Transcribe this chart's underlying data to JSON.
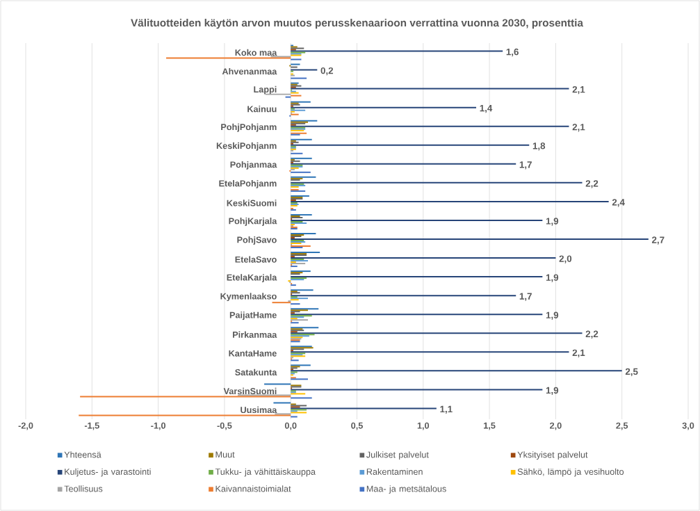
{
  "chart_data": {
    "type": "bar",
    "orientation": "horizontal",
    "title": "Välituotteiden käytön arvon muutos perusskenaarioon verrattina vuonna 2030, prosenttia",
    "categories": [
      "Koko maa",
      "Ahvenanmaa",
      "Lappi",
      "Kainuu",
      "PohjPohjanm",
      "KeskiPohjanm",
      "Pohjanmaa",
      "EtelaPohjanm",
      "KeskiSuomi",
      "PohjKarjala",
      "PohjSavo",
      "EtelaSavo",
      "EtelaKarjala",
      "Kymenlaakso",
      "PaijatHame",
      "Pirkanmaa",
      "KantaHame",
      "Satakunta",
      "VarsinSuomi",
      "Uusimaa"
    ],
    "series": [
      {
        "name": "Yhteensä",
        "color": "#2e75b6",
        "values": [
          0.02,
          0.07,
          0.06,
          0.15,
          0.2,
          0.16,
          0.16,
          0.19,
          0.14,
          0.16,
          0.19,
          0.22,
          0.15,
          0.17,
          0.21,
          0.21,
          0.16,
          0.15,
          -0.2,
          -0.13
        ]
      },
      {
        "name": "Muut",
        "color": "#9e7a00",
        "values": [
          0.05,
          -0.01,
          0.05,
          0.06,
          0.13,
          0.04,
          0.03,
          0.09,
          0.09,
          0.07,
          0.1,
          0.12,
          0.09,
          0.05,
          0.13,
          0.09,
          0.17,
          0.07,
          0.08,
          0.04
        ]
      },
      {
        "name": "Julkiset palvelut",
        "color": "#636363",
        "values": [
          0.1,
          0.05,
          0.08,
          0.07,
          0.11,
          0.06,
          0.07,
          0.07,
          0.09,
          0.09,
          0.08,
          0.12,
          0.07,
          0.07,
          0.07,
          0.1,
          0.1,
          0.05,
          0.08,
          0.12
        ]
      },
      {
        "name": "Yksityiset palvelut",
        "color": "#9e480e",
        "values": [
          0.04,
          0.0,
          0.04,
          0.02,
          0.04,
          0.02,
          0.02,
          0.0,
          0.04,
          0.01,
          0.03,
          0.03,
          0.0,
          0.01,
          0.03,
          0.05,
          0.02,
          0.02,
          0.01,
          0.07
        ]
      },
      {
        "name": "Kuljetus- ja varastointi",
        "color": "#264478",
        "values": [
          1.6,
          0.2,
          2.1,
          1.4,
          2.1,
          1.8,
          1.7,
          2.2,
          2.4,
          1.9,
          2.7,
          2.0,
          1.9,
          1.7,
          1.9,
          2.2,
          2.1,
          2.5,
          1.9,
          1.1
        ],
        "value_labels": [
          "1,6",
          "0,2",
          "2,1",
          "1,4",
          "2,1",
          "1,8",
          "1,7",
          "2,2",
          "2,4",
          "1,9",
          "2,7",
          "2,0",
          "1,9",
          "1,7",
          "1,9",
          "2,2",
          "2,1",
          "2,5",
          "1,9",
          "1,1"
        ]
      },
      {
        "name": "Tukku- ja vähittäiskauppa",
        "color": "#70ad47",
        "values": [
          0.11,
          0.02,
          0.01,
          0.03,
          0.11,
          0.04,
          0.09,
          0.1,
          0.05,
          0.09,
          0.1,
          0.1,
          0.12,
          0.05,
          0.16,
          0.18,
          0.11,
          0.05,
          0.04,
          0.12
        ]
      },
      {
        "name": "Rakentaminen",
        "color": "#5b9bd5",
        "values": [
          0.08,
          0.0,
          0.04,
          0.11,
          0.11,
          0.04,
          0.09,
          0.11,
          0.06,
          0.12,
          0.11,
          0.13,
          0.1,
          0.13,
          0.1,
          0.14,
          0.09,
          0.03,
          0.04,
          0.05
        ]
      },
      {
        "name": "Sähkö, lämpö ja vesihuolto",
        "color": "#ffc000",
        "values": [
          0.08,
          0.02,
          0.06,
          0.03,
          0.1,
          0.04,
          0.06,
          0.06,
          0.05,
          0.03,
          0.08,
          0.04,
          -0.02,
          0.06,
          0.05,
          0.09,
          0.11,
          0.02,
          0.11,
          0.12
        ]
      },
      {
        "name": "Teollisuus",
        "color": "#a5a5a5",
        "values": [
          -0.15,
          0.03,
          -0.19,
          0.01,
          0.0,
          0.02,
          0.03,
          0.0,
          0.0,
          0.02,
          0.01,
          0.11,
          -0.01,
          -0.02,
          0.13,
          0.08,
          0.02,
          0.0,
          -0.4,
          -0.12
        ]
      },
      {
        "name": "Kaivannaistoimialat",
        "color": "#ed7d31",
        "values": [
          -0.94,
          0.0,
          0.08,
          0.06,
          0.12,
          0.0,
          -0.01,
          0.06,
          0.02,
          0.05,
          0.15,
          0.01,
          0.01,
          -0.14,
          0.01,
          0.07,
          0.01,
          0.04,
          -1.59,
          -1.6
        ]
      },
      {
        "name": "Maa- ja metsätalous",
        "color": "#4472c4",
        "values": [
          0.08,
          0.12,
          -0.04,
          -0.01,
          0.07,
          0.09,
          0.15,
          0.11,
          0.04,
          0.05,
          0.09,
          0.05,
          0.04,
          0.07,
          0.06,
          0.07,
          0.06,
          0.13,
          0.16,
          0.05
        ]
      }
    ],
    "xlim": [
      -2,
      3
    ],
    "xticks": [
      {
        "value": -2,
        "label": "-2,0"
      },
      {
        "value": -1.5,
        "label": "-1,5"
      },
      {
        "value": -1,
        "label": "-1,0"
      },
      {
        "value": -0.5,
        "label": "-0,5"
      },
      {
        "value": 0,
        "label": "0,0"
      },
      {
        "value": 0.5,
        "label": "0,5"
      },
      {
        "value": 1,
        "label": "1,0"
      },
      {
        "value": 1.5,
        "label": "1,5"
      },
      {
        "value": 2,
        "label": "2,0"
      },
      {
        "value": 2.5,
        "label": "2,5"
      },
      {
        "value": 3,
        "label": "3,0"
      }
    ],
    "grid": "x",
    "legend": "bottom"
  }
}
